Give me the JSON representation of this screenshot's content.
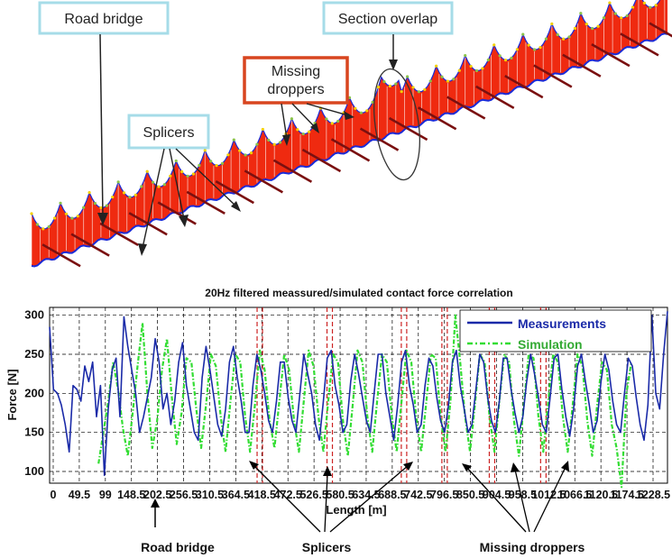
{
  "top_diagram": {
    "callouts": {
      "road_bridge": "Road bridge",
      "section_overlap": "Section overlap",
      "missing_droppers_line1": "Missing",
      "missing_droppers_line2": "droppers",
      "splicers": "Splicers"
    },
    "colors": {
      "fill": "#ef2a10",
      "messenger": "#1a2bd8",
      "contact_wire": "#1a2bd8",
      "droppers": "#ffffff",
      "masts": "#7a1010",
      "nodes": "#f4d000",
      "callout_box": "#a6dce8",
      "callout_box_highlight": "#d8451f"
    }
  },
  "chart_data": {
    "type": "line",
    "title": "20Hz filtered meassured/simulated contact force correlation",
    "xlabel": "Length [m]",
    "ylabel": "Force [N]",
    "xlim": [
      0,
      1264
    ],
    "ylim": [
      85,
      310
    ],
    "x_ticks": [
      "0",
      "49.5",
      "99",
      "148.5",
      "202.5",
      "256.5",
      "310.5",
      "364.5",
      "418.5",
      "472.5",
      "526.5",
      "580.5",
      "634.5",
      "688.5",
      "742.5",
      "796.5",
      "850.5",
      "904.5",
      "958.5",
      "1012.5",
      "1066.5",
      "1120.5",
      "1174.5",
      "1228.5"
    ],
    "x_tick_labels_shown": [
      "0",
      "49.5",
      "99",
      "148.5",
      "202.5",
      "256.5",
      "310.5",
      "364.5",
      "418.5",
      "472.5",
      "526.5",
      "580.5",
      "634.5",
      "688.5",
      "742.5",
      "796.5",
      "850.5",
      "904.5",
      "958.5",
      "1012.5",
      "1066.5",
      "1120.5",
      "1174.5",
      "1228.5"
    ],
    "y_ticks": [
      100,
      150,
      200,
      250,
      300
    ],
    "grid": true,
    "legend_position": "top-right",
    "series": [
      {
        "name": "Measurements",
        "color": "#1a2aa8",
        "style": "solid",
        "x": [
          0,
          8,
          16,
          24,
          32,
          40,
          48,
          56,
          64,
          72,
          80,
          88,
          96,
          104,
          112,
          120,
          128,
          136,
          144,
          152,
          160,
          168,
          176,
          184,
          192,
          200,
          208,
          216,
          224,
          232,
          240,
          248,
          256,
          264,
          272,
          280,
          288,
          296,
          304,
          312,
          320,
          328,
          336,
          344,
          352,
          360,
          368,
          376,
          384,
          392,
          400,
          408,
          416,
          424,
          432,
          440,
          448,
          456,
          464,
          472,
          480,
          488,
          496,
          504,
          512,
          520,
          528,
          536,
          544,
          552,
          560,
          568,
          576,
          584,
          592,
          600,
          608,
          616,
          624,
          632,
          640,
          648,
          656,
          664,
          672,
          680,
          688,
          696,
          704,
          712,
          720,
          728,
          736,
          744,
          752,
          760,
          768,
          776,
          784,
          792,
          800,
          808,
          816,
          824,
          832,
          840,
          848,
          856,
          864,
          872,
          880,
          888,
          896,
          904,
          912,
          920,
          928,
          936,
          944,
          952,
          960,
          968,
          976,
          984,
          992,
          1000,
          1008,
          1016,
          1024,
          1032,
          1040,
          1048,
          1056,
          1064,
          1072,
          1080,
          1088,
          1096,
          1104,
          1112,
          1120,
          1128,
          1136,
          1144,
          1152,
          1160,
          1168,
          1176,
          1184,
          1192,
          1200,
          1208,
          1216,
          1224,
          1232,
          1240,
          1248,
          1256,
          1264
        ],
        "values": [
          285,
          205,
          200,
          185,
          160,
          125,
          210,
          205,
          190,
          235,
          215,
          240,
          170,
          210,
          95,
          180,
          230,
          245,
          170,
          298,
          260,
          230,
          200,
          150,
          170,
          195,
          220,
          270,
          240,
          180,
          200,
          160,
          190,
          240,
          265,
          210,
          180,
          150,
          140,
          220,
          260,
          230,
          195,
          160,
          145,
          180,
          240,
          260,
          220,
          190,
          150,
          150,
          210,
          250,
          230,
          200,
          165,
          150,
          190,
          240,
          240,
          195,
          165,
          150,
          200,
          250,
          225,
          200,
          160,
          140,
          190,
          245,
          255,
          210,
          185,
          150,
          160,
          215,
          250,
          225,
          195,
          165,
          150,
          200,
          250,
          250,
          200,
          170,
          140,
          185,
          240,
          255,
          210,
          185,
          150,
          160,
          210,
          245,
          235,
          195,
          165,
          150,
          185,
          240,
          255,
          210,
          180,
          150,
          160,
          205,
          250,
          240,
          195,
          165,
          150,
          190,
          245,
          245,
          205,
          175,
          150,
          170,
          215,
          250,
          225,
          195,
          160,
          150,
          195,
          245,
          250,
          205,
          170,
          145,
          180,
          235,
          250,
          215,
          185,
          150,
          165,
          215,
          250,
          230,
          190,
          160,
          150,
          200,
          245,
          235,
          195,
          160,
          140,
          185,
          300,
          200,
          180,
          250,
          305
        ]
      },
      {
        "name": "Simulation",
        "color": "#33dd33",
        "style": "dash-dot",
        "x": [
          100,
          110,
          120,
          130,
          140,
          150,
          160,
          170,
          180,
          190,
          200,
          210,
          220,
          230,
          240,
          250,
          260,
          270,
          280,
          290,
          300,
          310,
          320,
          330,
          340,
          350,
          360,
          370,
          380,
          390,
          400,
          410,
          420,
          430,
          440,
          450,
          460,
          470,
          480,
          490,
          500,
          510,
          520,
          530,
          540,
          550,
          560,
          570,
          580,
          590,
          600,
          610,
          620,
          630,
          640,
          650,
          660,
          670,
          680,
          690,
          700,
          710,
          720,
          730,
          740,
          750,
          760,
          770,
          780,
          790,
          800,
          810,
          820,
          830,
          840,
          850,
          860,
          870,
          880,
          890,
          900,
          910,
          920,
          930,
          940,
          950,
          960,
          970,
          980,
          990,
          1000,
          1010,
          1020,
          1030,
          1040,
          1050,
          1060,
          1070,
          1080,
          1090,
          1100,
          1110,
          1120,
          1130,
          1140,
          1150,
          1160,
          1170,
          1180,
          1190
        ],
        "values": [
          110,
          150,
          190,
          240,
          205,
          155,
          120,
          175,
          235,
          290,
          200,
          130,
          165,
          230,
          270,
          195,
          135,
          175,
          245,
          240,
          180,
          130,
          185,
          250,
          235,
          170,
          125,
          190,
          250,
          240,
          170,
          125,
          185,
          255,
          230,
          165,
          130,
          190,
          250,
          230,
          165,
          125,
          190,
          255,
          235,
          170,
          125,
          190,
          250,
          240,
          165,
          120,
          185,
          255,
          240,
          170,
          125,
          190,
          250,
          240,
          170,
          125,
          190,
          255,
          240,
          170,
          125,
          185,
          250,
          245,
          170,
          125,
          190,
          300,
          240,
          170,
          125,
          185,
          250,
          240,
          170,
          125,
          190,
          250,
          240,
          165,
          120,
          185,
          250,
          245,
          170,
          125,
          190,
          250,
          240,
          170,
          125,
          185,
          250,
          235,
          165,
          120,
          185,
          240,
          230,
          160,
          130,
          80,
          200,
          240
        ]
      }
    ],
    "vertical_markers": [
      {
        "x": 430,
        "label": "Splicers",
        "style": "red-dashed-pair"
      },
      {
        "x": 573,
        "label": "Splicers",
        "style": "red-dashed-pair"
      },
      {
        "x": 725,
        "label": "Splicers",
        "style": "red-dashed-pair"
      },
      {
        "x": 808,
        "label": "Missing droppers",
        "style": "red-dashed-pair"
      },
      {
        "x": 905,
        "label": "Missing droppers",
        "style": "red-dashed-pair"
      },
      {
        "x": 1010,
        "label": "Missing droppers",
        "style": "red-dashed-pair"
      }
    ],
    "annotations": {
      "road_bridge": "Road bridge",
      "splicers": "Splicers",
      "missing_droppers": "Missing droppers"
    }
  }
}
